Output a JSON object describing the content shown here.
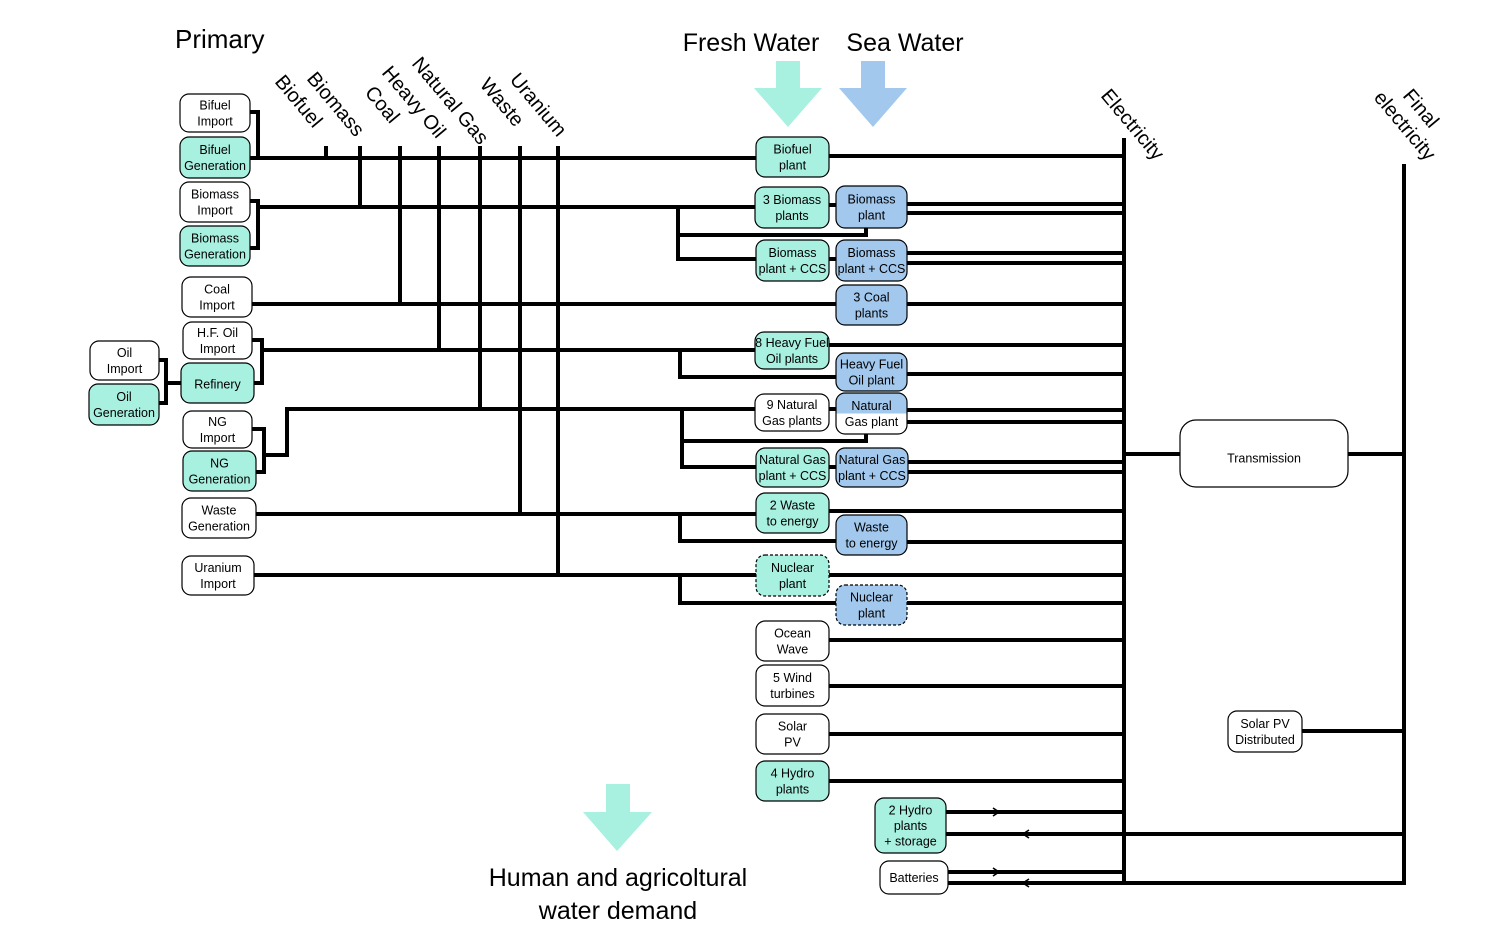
{
  "colors": {
    "fresh_water": "#a8f0e0",
    "sea_water": "#a2c8ee",
    "plain_fill": "#ffffff",
    "line": "#000000"
  },
  "headers": {
    "primary": "Primary",
    "fresh_water": "Fresh Water",
    "sea_water": "Sea Water",
    "electricity": "Electricity",
    "final_electricity_line1": "Final",
    "final_electricity_line2": "electricity",
    "demand_line1": "Human and agricoltural",
    "demand_line2": "water demand"
  },
  "fuel_columns": [
    {
      "id": "biofuel",
      "label": "Biofuel"
    },
    {
      "id": "biomass",
      "label": "Biomass"
    },
    {
      "id": "coal",
      "label": "Coal"
    },
    {
      "id": "heavy_oil",
      "label": "Heavy Oil"
    },
    {
      "id": "natural_gas",
      "label": "Natural Gas"
    },
    {
      "id": "waste",
      "label": "Waste"
    },
    {
      "id": "uranium",
      "label": "Uranium"
    }
  ],
  "nodes": {
    "bifuel_import": {
      "lines": [
        "Bifuel",
        "Import"
      ],
      "fill": "plain"
    },
    "bifuel_generation": {
      "lines": [
        "Bifuel",
        "Generation"
      ],
      "fill": "fresh"
    },
    "biomass_import": {
      "lines": [
        "Biomass",
        "Import"
      ],
      "fill": "plain"
    },
    "biomass_generation": {
      "lines": [
        "Biomass",
        "Generation"
      ],
      "fill": "fresh"
    },
    "coal_import": {
      "lines": [
        "Coal",
        "Import"
      ],
      "fill": "plain"
    },
    "hf_oil_import": {
      "lines": [
        "H.F. Oil",
        "Import"
      ],
      "fill": "plain"
    },
    "refinery": {
      "lines": [
        "Refinery"
      ],
      "fill": "fresh"
    },
    "oil_import": {
      "lines": [
        "Oil",
        "Import"
      ],
      "fill": "plain"
    },
    "oil_generation": {
      "lines": [
        "Oil",
        "Generation"
      ],
      "fill": "fresh"
    },
    "ng_import": {
      "lines": [
        "NG",
        "Import"
      ],
      "fill": "plain"
    },
    "ng_generation": {
      "lines": [
        "NG",
        "Generation"
      ],
      "fill": "fresh"
    },
    "waste_generation": {
      "lines": [
        "Waste",
        "Generation"
      ],
      "fill": "plain"
    },
    "uranium_import": {
      "lines": [
        "Uranium",
        "Import"
      ],
      "fill": "plain"
    },
    "biofuel_plant": {
      "lines": [
        "Biofuel",
        "plant"
      ],
      "fill": "fresh"
    },
    "biomass_plants_3": {
      "lines": [
        "3 Biomass",
        "plants"
      ],
      "fill": "fresh"
    },
    "biomass_plant_sea": {
      "lines": [
        "Biomass",
        "plant"
      ],
      "fill": "sea"
    },
    "biomass_ccs_fresh": {
      "lines": [
        "Biomass",
        "plant + CCS"
      ],
      "fill": "fresh"
    },
    "biomass_ccs_sea": {
      "lines": [
        "Biomass",
        "plant + CCS"
      ],
      "fill": "sea"
    },
    "coal_plants_3": {
      "lines": [
        "3 Coal",
        "plants"
      ],
      "fill": "sea"
    },
    "heavy_fuel_8": {
      "lines": [
        "8 Heavy Fuel",
        "Oil plants"
      ],
      "fill": "fresh"
    },
    "heavy_fuel_sea": {
      "lines": [
        "Heavy Fuel",
        "Oil plant"
      ],
      "fill": "sea"
    },
    "ng_plants_9": {
      "lines": [
        "9 Natural",
        "Gas plants"
      ],
      "fill": "plain"
    },
    "ng_plant_sea": {
      "lines": [
        "Natural",
        "Gas plant"
      ],
      "fill": "half"
    },
    "ng_ccs_fresh": {
      "lines": [
        "Natural Gas",
        "plant + CCS"
      ],
      "fill": "fresh"
    },
    "ng_ccs_sea": {
      "lines": [
        "Natural Gas",
        "plant + CCS"
      ],
      "fill": "sea"
    },
    "waste_energy_2": {
      "lines": [
        "2 Waste",
        "to energy"
      ],
      "fill": "fresh"
    },
    "waste_energy_sea": {
      "lines": [
        "Waste",
        "to energy"
      ],
      "fill": "sea"
    },
    "nuclear_fresh": {
      "lines": [
        "Nuclear",
        "plant"
      ],
      "fill": "fresh"
    },
    "nuclear_sea": {
      "lines": [
        "Nuclear",
        "plant"
      ],
      "fill": "sea"
    },
    "ocean_wave": {
      "lines": [
        "Ocean",
        "Wave"
      ],
      "fill": "plain"
    },
    "wind_5": {
      "lines": [
        "5 Wind",
        "turbines"
      ],
      "fill": "plain"
    },
    "solar_pv": {
      "lines": [
        "Solar",
        "PV"
      ],
      "fill": "plain"
    },
    "hydro_4": {
      "lines": [
        "4 Hydro",
        "plants"
      ],
      "fill": "fresh"
    },
    "hydro_storage": {
      "lines": [
        "2 Hydro",
        "plants",
        "+ storage"
      ],
      "fill": "fresh"
    },
    "batteries": {
      "lines": [
        "Batteries"
      ],
      "fill": "plain"
    },
    "solar_pv_distributed": {
      "lines": [
        "Solar PV",
        "Distributed"
      ],
      "fill": "plain"
    },
    "transmission": {
      "lines": [
        "Transmission"
      ],
      "fill": "plain"
    }
  }
}
